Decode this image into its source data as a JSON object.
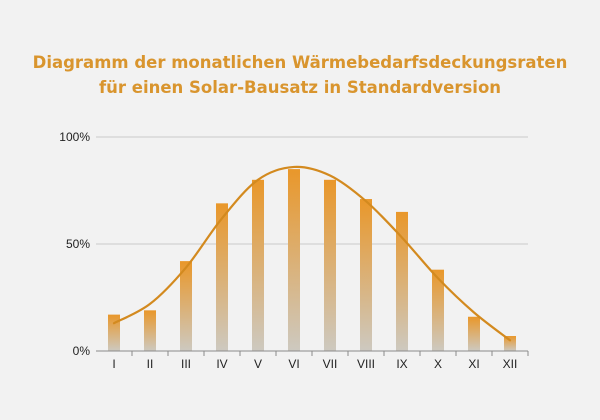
{
  "chart_data": {
    "type": "bar",
    "title_lines": [
      "Diagramm der monatlichen Wärmebedarfsdeckungsraten",
      "für einen Solar-Bausatz in Standardversion"
    ],
    "categories": [
      "I",
      "II",
      "III",
      "IV",
      "V",
      "VI",
      "VII",
      "VIII",
      "IX",
      "X",
      "XI",
      "XII"
    ],
    "values": [
      17,
      19,
      42,
      69,
      80,
      85,
      80,
      71,
      65,
      38,
      16,
      7
    ],
    "trend_line": [
      13,
      22,
      39,
      62,
      80,
      86,
      82,
      70,
      53,
      34,
      18,
      5
    ],
    "ylim": [
      0,
      100
    ],
    "y_ticks": [
      {
        "value": 0,
        "label": "0%"
      },
      {
        "value": 50,
        "label": "50%"
      },
      {
        "value": 100,
        "label": "100%"
      }
    ],
    "grid": true,
    "colors": {
      "bar_top": "#e9972a",
      "bar_bottom": "#cdc9c0",
      "trend": "#d38a1f",
      "title": "#d9952e",
      "grid": "#c9c9c9",
      "axis": "#8a8a8a"
    }
  }
}
